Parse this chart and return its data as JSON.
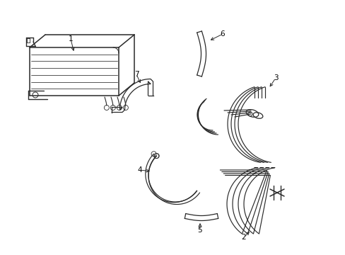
{
  "bg_color": "#ffffff",
  "line_color": "#2a2a2a",
  "lw": 1.0,
  "fig_width": 4.89,
  "fig_height": 3.6,
  "dpi": 100
}
